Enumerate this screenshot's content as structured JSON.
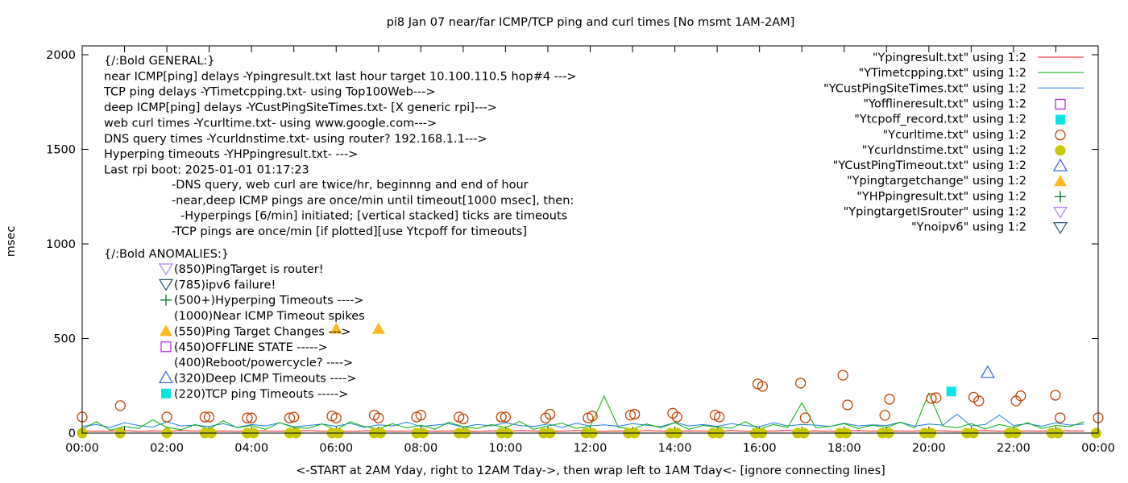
{
  "chart_data": {
    "type": "line",
    "title": "pi8 Jan 07  near/far ICMP/TCP ping and curl times [No msmt 1AM-2AM]",
    "xlabel": "<-START at 2AM Yday, right to 12AM Tday->, then wrap left to 1AM Tday<- [ignore connecting lines]",
    "ylabel": "msec",
    "xlim": [
      0,
      24
    ],
    "ylim": [
      0,
      2000
    ],
    "x_unit": "hours",
    "yticks": [
      "0",
      "500",
      "1000",
      "1500",
      "2000"
    ],
    "xticks": [
      "00:00",
      "02:00",
      "04:00",
      "06:00",
      "08:00",
      "10:00",
      "12:00",
      "14:00",
      "16:00",
      "18:00",
      "20:00",
      "22:00",
      "00:00"
    ],
    "legend_position": "top-right",
    "legend": [
      {
        "label": "\"Ypingresult.txt\" using 1:2",
        "style": "line",
        "color": "#e41a1c"
      },
      {
        "label": "\"YTimetcpping.txt\" using 1:2",
        "style": "line",
        "color": "#00b000"
      },
      {
        "label": "\"YCustPingSiteTimes.txt\" using 1:2",
        "style": "line",
        "color": "#1a7ae0"
      },
      {
        "label": "\"Yofflineresult.txt\" using 1:2",
        "style": "square-open",
        "color": "#b020e0"
      },
      {
        "label": "\"Ytcpoff_record.txt\" using 1:2",
        "style": "square-filled",
        "color": "#00e8e8"
      },
      {
        "label": "\"Ycurltime.txt\" using 1:2",
        "style": "circle-open",
        "color": "#c04000"
      },
      {
        "label": "\"Ycurldnstime.txt\" using 1:2",
        "style": "circle-filled",
        "color": "#c8c800"
      },
      {
        "label": "\"YCustPingTimeout.txt\" using 1:2",
        "style": "triangle-up-open",
        "color": "#3060e0"
      },
      {
        "label": "\"Ypingtargetchange\" using 1:2",
        "style": "triangle-up-filled",
        "color": "#ffb820"
      },
      {
        "label": "\"YHPpingresult.txt\" using 1:2",
        "style": "plus",
        "color": "#007030"
      },
      {
        "label": "\"YpingtargetISrouter\" using 1:2",
        "style": "triangle-down-open",
        "color": "#b080f0"
      },
      {
        "label": "\"Ynoipv6\" using 1:2",
        "style": "triangle-down-open",
        "color": "#205070"
      }
    ],
    "series": [
      {
        "name": "Ypingresult.txt",
        "x_step_hours": 0.3333,
        "values": [
          12,
          10,
          11,
          14,
          9,
          12,
          10,
          13,
          11,
          10,
          12,
          9,
          14,
          11,
          10,
          12,
          13,
          10,
          11,
          9,
          12,
          14,
          10,
          11,
          13,
          10,
          12,
          11,
          9,
          12,
          10,
          13,
          11,
          12,
          10,
          14,
          11,
          9,
          12,
          10,
          13,
          11,
          10,
          12,
          11,
          9,
          13,
          10,
          12,
          11,
          14,
          10,
          12,
          9,
          11,
          13,
          10,
          12,
          11,
          10,
          14,
          12,
          9,
          11,
          13,
          10,
          12,
          11,
          10,
          13,
          11,
          12
        ]
      },
      {
        "name": "YTimetcpping.txt",
        "x_step_hours": 0.3333,
        "values": [
          20,
          60,
          15,
          35,
          25,
          70,
          30,
          18,
          45,
          22,
          65,
          28,
          40,
          20,
          55,
          30,
          25,
          48,
          18,
          60,
          35,
          22,
          50,
          27,
          42,
          20,
          58,
          33,
          24,
          45,
          28,
          62,
          20,
          38,
          52,
          25,
          35,
          195,
          30,
          22,
          48,
          28,
          55,
          20,
          40,
          32,
          26,
          60,
          22,
          45,
          30,
          160,
          28,
          35,
          50,
          24,
          42,
          30,
          58,
          26,
          210,
          38,
          28,
          50,
          22,
          45,
          30,
          55,
          25,
          40,
          35,
          60
        ]
      },
      {
        "name": "YCustPingSiteTimes.txt",
        "x_step_hours": 0.3333,
        "values": [
          35,
          45,
          30,
          55,
          40,
          32,
          60,
          38,
          42,
          35,
          50,
          30,
          45,
          38,
          55,
          33,
          40,
          48,
          36,
          52,
          30,
          44,
          38,
          58,
          35,
          42,
          50,
          32,
          46,
          38,
          55,
          40,
          35,
          48,
          30,
          52,
          38,
          44,
          36,
          50,
          42,
          33,
          56,
          38,
          45,
          35,
          50,
          40,
          34,
          55,
          38,
          46,
          42,
          35,
          52,
          38,
          44,
          40,
          58,
          36,
          48,
          42,
          100,
          38,
          45,
          95,
          40,
          50,
          36,
          55,
          42,
          48
        ]
      }
    ],
    "points": {
      "Ycurltime": [
        [
          0,
          85
        ],
        [
          0.9,
          145
        ],
        [
          2.0,
          85
        ],
        [
          2.9,
          85
        ],
        [
          3.0,
          85
        ],
        [
          3.9,
          80
        ],
        [
          4.0,
          80
        ],
        [
          4.9,
          80
        ],
        [
          5.0,
          85
        ],
        [
          5.9,
          90
        ],
        [
          6.0,
          80
        ],
        [
          6.9,
          95
        ],
        [
          7.0,
          80
        ],
        [
          7.9,
          85
        ],
        [
          8.0,
          95
        ],
        [
          8.9,
          85
        ],
        [
          9.0,
          75
        ],
        [
          9.9,
          85
        ],
        [
          10.0,
          85
        ],
        [
          10.95,
          80
        ],
        [
          11.05,
          100
        ],
        [
          11.95,
          80
        ],
        [
          12.05,
          90
        ],
        [
          12.95,
          95
        ],
        [
          13.05,
          100
        ],
        [
          13.95,
          105
        ],
        [
          14.05,
          85
        ],
        [
          14.95,
          95
        ],
        [
          15.05,
          85
        ],
        [
          15.96,
          260
        ],
        [
          16.07,
          247
        ],
        [
          16.97,
          264
        ],
        [
          17.08,
          81
        ],
        [
          17.97,
          306
        ],
        [
          18.08,
          149
        ],
        [
          18.96,
          94
        ],
        [
          19.07,
          179
        ],
        [
          20.06,
          183
        ],
        [
          20.17,
          187
        ],
        [
          21.06,
          190
        ],
        [
          21.18,
          170
        ],
        [
          22.06,
          170
        ],
        [
          22.17,
          197
        ],
        [
          22.99,
          200
        ],
        [
          23.1,
          81
        ],
        [
          24.0,
          81
        ]
      ],
      "Ycurldnstime": [
        [
          0,
          0
        ],
        [
          0.9,
          0
        ],
        [
          2.0,
          0
        ],
        [
          2.9,
          0
        ],
        [
          3.05,
          0
        ],
        [
          3.9,
          0
        ],
        [
          4.05,
          0
        ],
        [
          4.9,
          0
        ],
        [
          5.05,
          0
        ],
        [
          5.9,
          0
        ],
        [
          6.05,
          0
        ],
        [
          6.9,
          0
        ],
        [
          7.05,
          0
        ],
        [
          7.9,
          0
        ],
        [
          8.05,
          0
        ],
        [
          8.9,
          0
        ],
        [
          9.05,
          0
        ],
        [
          9.9,
          0
        ],
        [
          10.05,
          0
        ],
        [
          10.9,
          0
        ],
        [
          11.05,
          0
        ],
        [
          11.9,
          0
        ],
        [
          12.05,
          0
        ],
        [
          12.9,
          0
        ],
        [
          13.05,
          0
        ],
        [
          13.9,
          0
        ],
        [
          14.05,
          0
        ],
        [
          14.9,
          0
        ],
        [
          15.05,
          0
        ],
        [
          15.9,
          0
        ],
        [
          16.05,
          0
        ],
        [
          16.9,
          0
        ],
        [
          17.05,
          0
        ],
        [
          17.9,
          0
        ],
        [
          18.05,
          0
        ],
        [
          18.9,
          0
        ],
        [
          19.05,
          0
        ],
        [
          19.9,
          0
        ],
        [
          20.05,
          0
        ],
        [
          20.9,
          0
        ],
        [
          21.05,
          0
        ],
        [
          21.9,
          0
        ],
        [
          22.05,
          0
        ],
        [
          22.9,
          0
        ],
        [
          23.05,
          0
        ],
        [
          23.95,
          0
        ]
      ],
      "Ytcpoff_record": [
        [
          20.53,
          220
        ]
      ],
      "YCustPingTimeout": [
        [
          21.39,
          320
        ]
      ],
      "Ypingtargetchange": [
        [
          6.0,
          550
        ],
        [
          7.0,
          550
        ]
      ]
    },
    "annotations": {
      "general": [
        "{/:Bold GENERAL:}",
        "near ICMP[ping] delays -Ypingresult.txt last hour target 10.100.110.5 hop#4 --->",
        "TCP ping delays -YTimetcpping.txt- using Top100Web--->",
        "deep ICMP[ping] delays -YCustPingSiteTimes.txt- [X generic rpi]--->",
        "web curl times -Ycurltime.txt- using www.google.com--->",
        "DNS query times -Ycurldnstime.txt- using router? 192.168.1.1--->",
        "Hyperping timeouts -YHPpingresult.txt- --->",
        "Last rpi boot: 2025-01-01 01:17:23"
      ],
      "notes": [
        "-DNS query, web curl are twice/hr, beginnng and end of hour",
        "-near,deep ICMP pings are once/min until timeout[1000 msec], then:",
        "-Hyperpings [6/min] initiated; [vertical stacked] ticks are timeouts",
        "-TCP pings are once/min [if plotted][use Ytcpoff for timeouts]"
      ],
      "anomalies_title": "{/:Bold ANOMALIES:}",
      "anomalies": [
        {
          "label": "(850)PingTarget is router!",
          "icon": "triangle-down-open",
          "color": "#b080f0"
        },
        {
          "label": "(785)ipv6 failure!",
          "icon": "triangle-down-open",
          "color": "#205070"
        },
        {
          "label": "(500+)Hyperping Timeouts ---->",
          "icon": "plus",
          "color": "#007030"
        },
        {
          "label": "(1000)Near ICMP Timeout spikes",
          "icon": "none",
          "color": "#000000"
        },
        {
          "label": "(550)Ping Target Changes --->",
          "icon": "triangle-up-filled",
          "color": "#ffb820"
        },
        {
          "label": "(450)OFFLINE STATE ----->",
          "icon": "square-open",
          "color": "#b020e0"
        },
        {
          "label": "(400)Reboot/powercycle? ---->",
          "icon": "none",
          "color": "#000000"
        },
        {
          "label": "(320)Deep ICMP Timeouts ---->",
          "icon": "triangle-up-open",
          "color": "#3060e0"
        },
        {
          "label": "(220)TCP ping Timeouts ----->",
          "icon": "square-filled",
          "color": "#00e8e8"
        }
      ]
    }
  }
}
